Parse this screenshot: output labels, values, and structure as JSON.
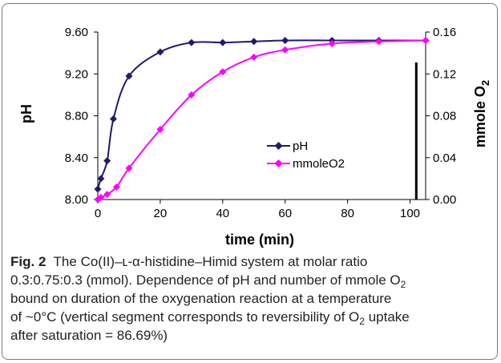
{
  "chart_data": {
    "type": "line",
    "xlabel": "time (min)",
    "ylabel_left": "pH",
    "ylabel_right_main": "mmole O",
    "ylabel_right_sub": "2",
    "x_ticks": [
      "0",
      "20",
      "40",
      "60",
      "80",
      "100"
    ],
    "y_left_ticks": [
      "8.00",
      "8.40",
      "8.80",
      "9.20",
      "9.60"
    ],
    "y_right_ticks": [
      "0.00",
      "0.04",
      "0.08",
      "0.12",
      "0.16"
    ],
    "xlim": [
      0,
      105
    ],
    "ylim_left": [
      8.0,
      9.6
    ],
    "ylim_right": [
      0.0,
      0.16
    ],
    "grid": false,
    "legend_position": "center-right",
    "series": [
      {
        "name": "pH",
        "axis": "left",
        "color": "#1f1a6e",
        "marker": "diamond",
        "x": [
          0,
          1,
          3,
          5,
          10,
          20,
          30,
          40,
          50,
          60,
          75,
          90,
          105
        ],
        "y": [
          8.1,
          8.2,
          8.37,
          8.77,
          9.18,
          9.41,
          9.5,
          9.5,
          9.51,
          9.52,
          9.52,
          9.52,
          9.52
        ]
      },
      {
        "name": "mmoleO2",
        "axis": "right",
        "color": "#ff00ff",
        "marker": "diamond",
        "x": [
          0,
          1,
          3,
          6,
          10,
          20,
          30,
          40,
          50,
          60,
          75,
          90,
          105
        ],
        "y": [
          0.0,
          0.002,
          0.005,
          0.012,
          0.03,
          0.067,
          0.1,
          0.122,
          0.136,
          0.143,
          0.149,
          0.151,
          0.152
        ]
      }
    ],
    "annotation_segment": {
      "x": 102,
      "y_from": 0.0,
      "y_to": 0.131,
      "axis": "right",
      "color": "#000000"
    }
  },
  "caption": {
    "label": "Fig. 2",
    "line1": "The Co(II)–ʟ-α-histidine–Himid system at molar ratio",
    "line2_before": "0.3:0.75:0.3 (mmol). Dependence of pH and number of mmole O",
    "line2_sub": "2",
    "line3": "bound on duration of the oxygenation reaction at a temperature",
    "line4_before": "of ~0°C (vertical segment corresponds to reversibility of O",
    "line4_sub": "2",
    "line4_after": " uptake",
    "line5": "after saturation = 86.69%)"
  }
}
